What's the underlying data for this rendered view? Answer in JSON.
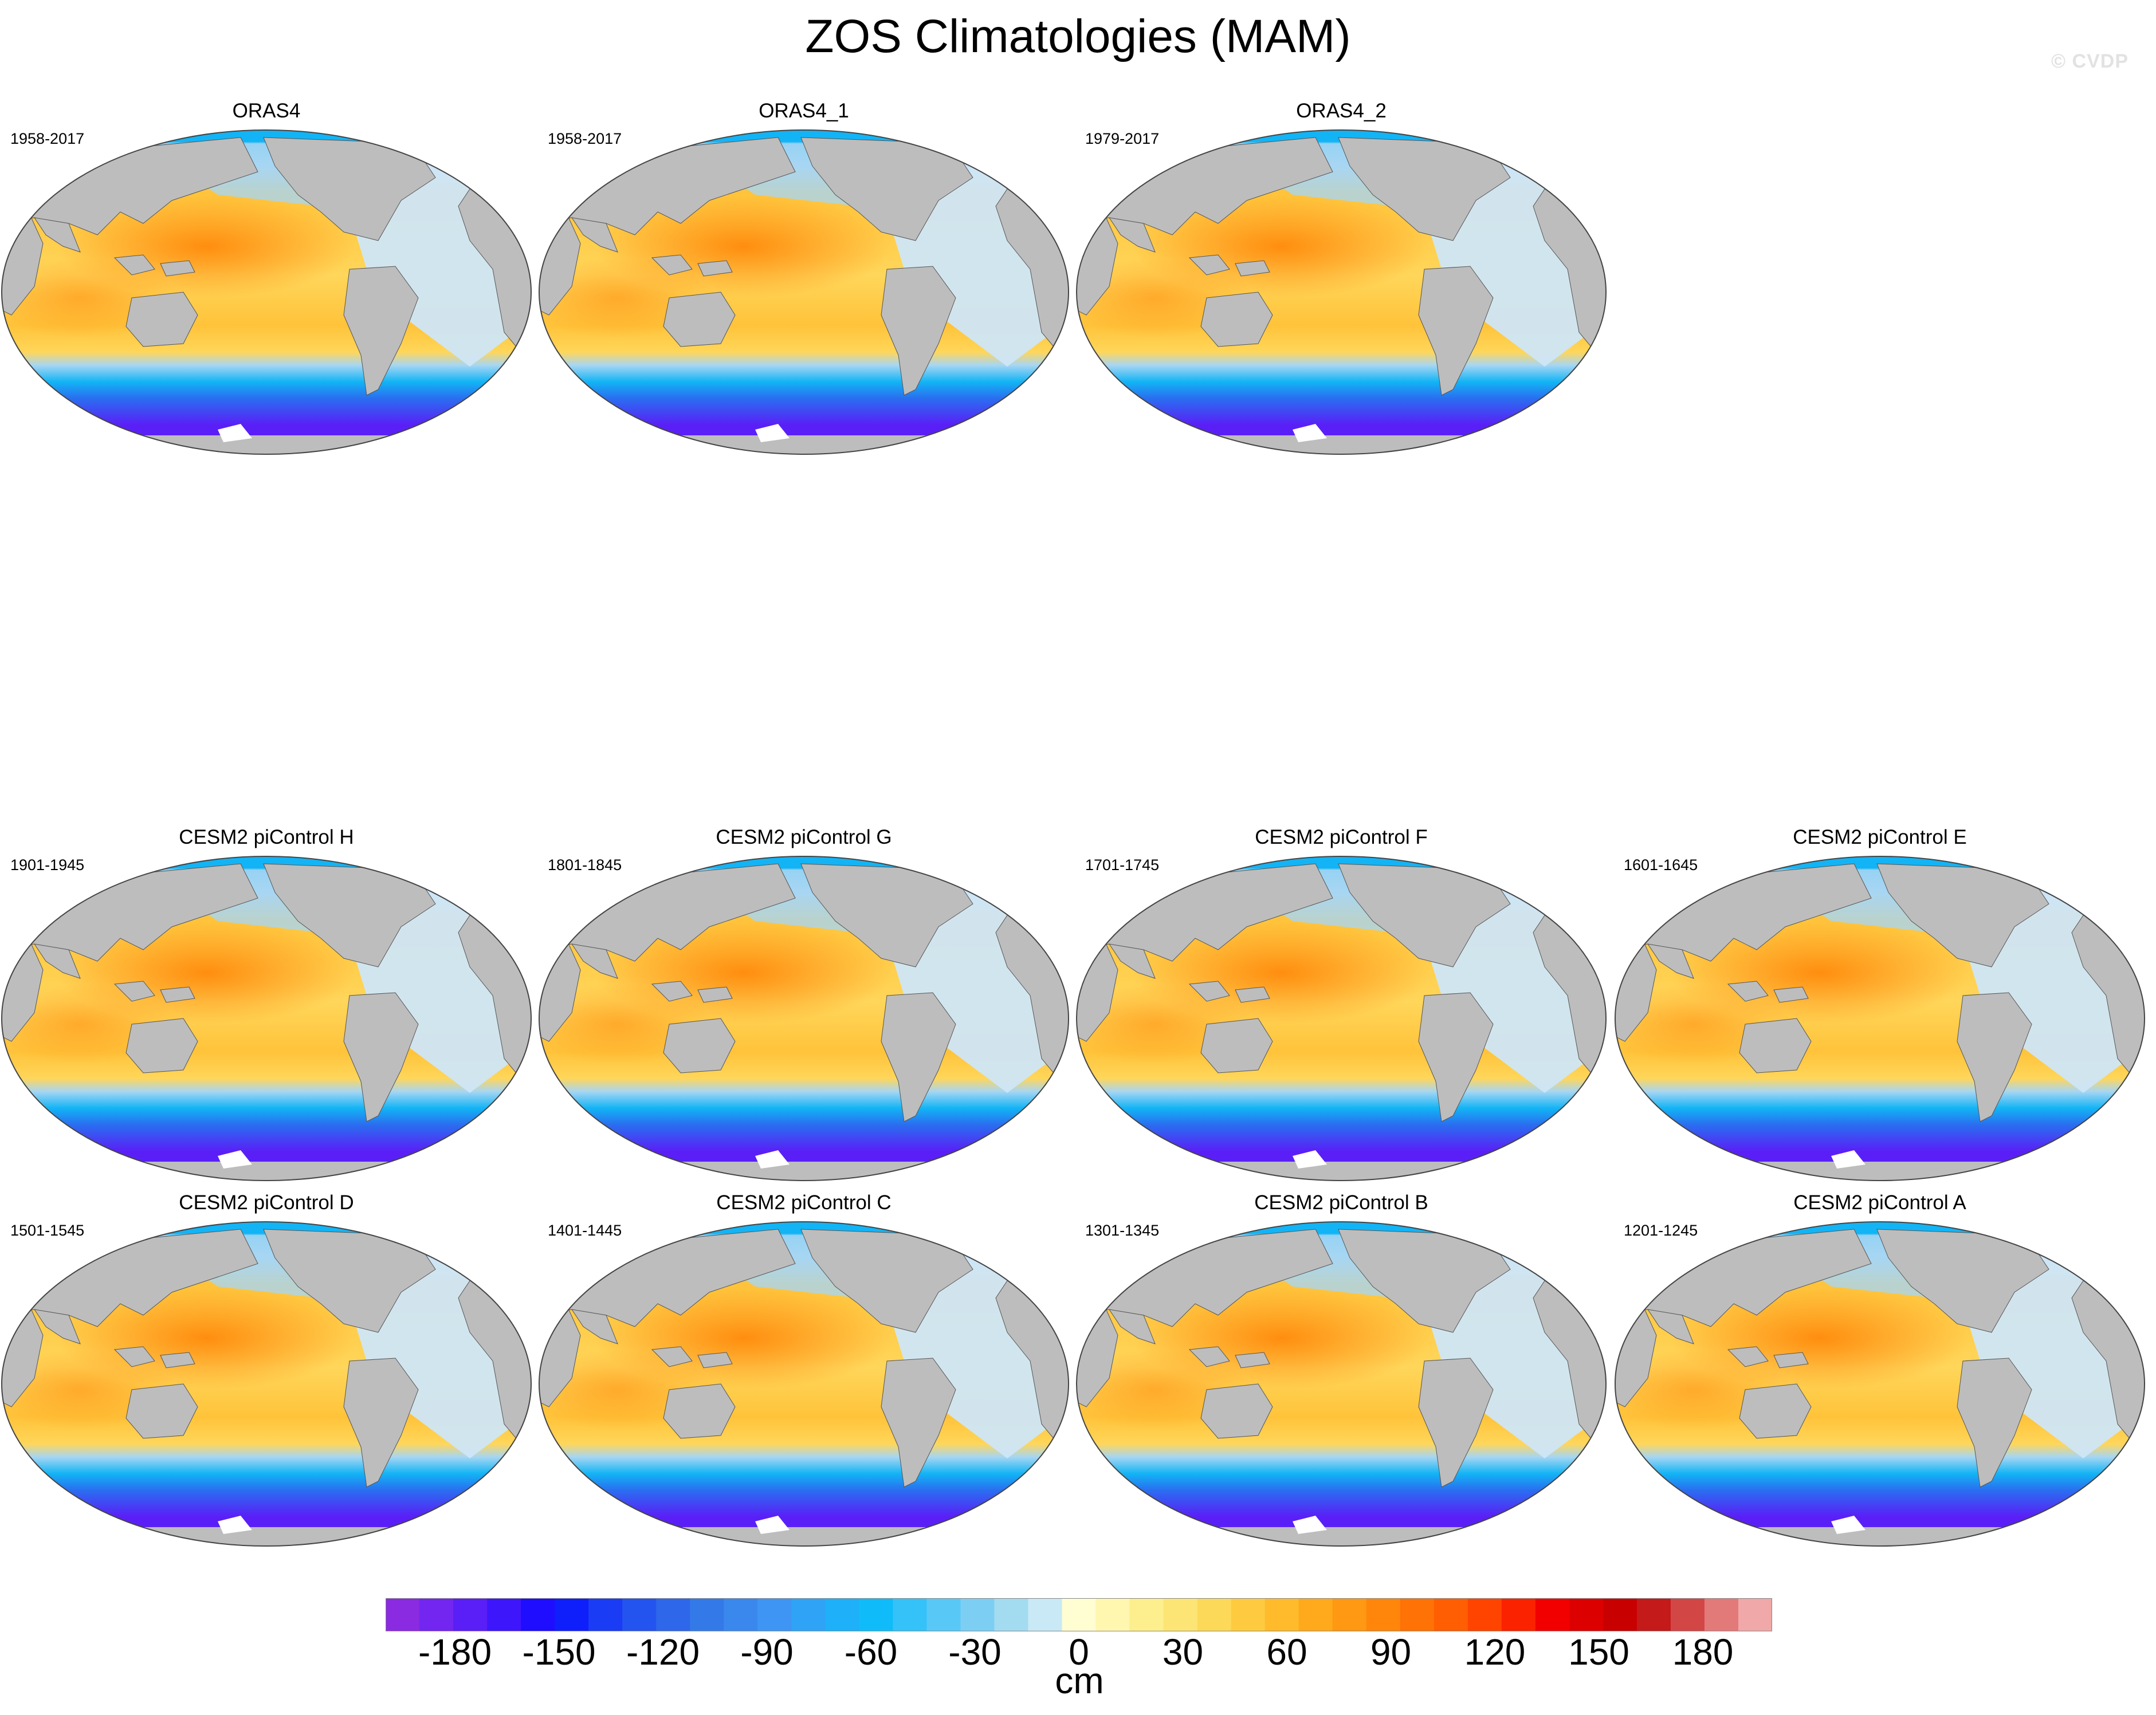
{
  "title": "ZOS Climatologies (MAM)",
  "watermark": "© CVDP",
  "panels": [
    {
      "title": "ORAS4",
      "period": "1958-2017"
    },
    {
      "title": "ORAS4_1",
      "period": "1958-2017"
    },
    {
      "title": "ORAS4_2",
      "period": "1979-2017"
    },
    {
      "title": "CESM2 piControl H",
      "period": "1901-1945"
    },
    {
      "title": "CESM2 piControl G",
      "period": "1801-1845"
    },
    {
      "title": "CESM2 piControl F",
      "period": "1701-1745"
    },
    {
      "title": "CESM2 piControl E",
      "period": "1601-1645"
    },
    {
      "title": "CESM2 piControl D",
      "period": "1501-1545"
    },
    {
      "title": "CESM2 piControl C",
      "period": "1401-1445"
    },
    {
      "title": "CESM2 piControl B",
      "period": "1301-1345"
    },
    {
      "title": "CESM2 piControl A",
      "period": "1201-1245"
    }
  ],
  "colorbar": {
    "units": "cm",
    "min": -200,
    "max": 200,
    "step": 10,
    "tick_labels": [
      "-180",
      "-150",
      "-120",
      "-90",
      "-60",
      "-30",
      "0",
      "30",
      "60",
      "90",
      "120",
      "150",
      "180"
    ],
    "tick_values": [
      -180,
      -150,
      -120,
      -90,
      -60,
      -30,
      0,
      30,
      60,
      90,
      120,
      150,
      180
    ],
    "colors": [
      "#8a2be2",
      "#7226f0",
      "#5a1ff7",
      "#3e16fc",
      "#1f0dff",
      "#0f1ffc",
      "#1a3cf5",
      "#2454ef",
      "#2e67ea",
      "#3479e8",
      "#3a88ee",
      "#3f95f3",
      "#2fa3f6",
      "#1eb0f8",
      "#0fbcf9",
      "#34c2f8",
      "#58c9f6",
      "#7ccff3",
      "#a3dbf1",
      "#c8e9f5",
      "#fffdd2",
      "#fff6b0",
      "#fdee8e",
      "#fce574",
      "#fdd95a",
      "#fecb40",
      "#ffbb2b",
      "#ffa91c",
      "#ff9812",
      "#ff860b",
      "#ff7205",
      "#ff5e02",
      "#ff4400",
      "#fb2200",
      "#f20000",
      "#dd0000",
      "#c80000",
      "#c41a1a",
      "#d34646",
      "#e27a7a",
      "#f0a8a8"
    ]
  },
  "map_colors": {
    "land": "#bdbdbd",
    "ocean_warm_max": "#ff8a0c",
    "ocean_subtropical": "#ffc33a",
    "ocean_tropical": "#ffd65a",
    "ocean_atlantic": "#cfe6f7",
    "ocean_arctic": "#12b4f5",
    "ocean_north_pacific": "#a7d6f3",
    "southern_ocean_mid": "#2a6ef0",
    "southern_ocean_deep": "#5a1ff7"
  }
}
